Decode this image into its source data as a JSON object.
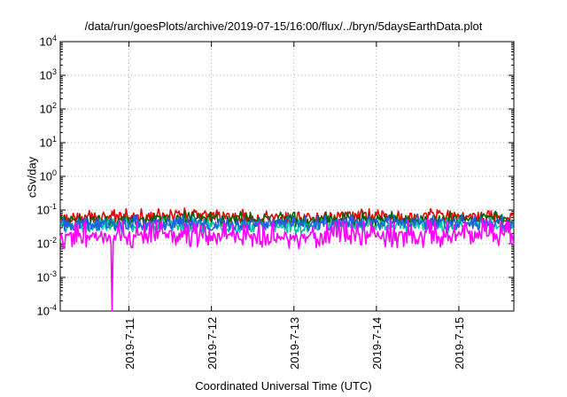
{
  "chart_data": {
    "type": "line",
    "title": "/data/run/goesPlots/archive/2019-07-15/16:00/flux/../bryn/5daysEarthData.plot",
    "xlabel": "Coordinated Universal Time (UTC)",
    "ylabel": "cSv/day",
    "yscale": "log",
    "ylim": [
      0.0001,
      10000
    ],
    "xlim": [
      "2019-07-10 04:00",
      "2019-07-15 16:00"
    ],
    "grid": true,
    "y_tick_labels": [
      {
        "base": "10",
        "exp": "4"
      },
      {
        "base": "10",
        "exp": "3"
      },
      {
        "base": "10",
        "exp": "2"
      },
      {
        "base": "10",
        "exp": "1"
      },
      {
        "base": "10",
        "exp": "0"
      },
      {
        "base": "10",
        "exp": "-1"
      },
      {
        "base": "10",
        "exp": "-2"
      },
      {
        "base": "10",
        "exp": "-3"
      },
      {
        "base": "10",
        "exp": "-4"
      }
    ],
    "x_tick_labels": [
      "2019-7-11",
      "2019-7-12",
      "2019-7-13",
      "2019-7-14",
      "2019-7-15"
    ],
    "series": [
      {
        "color": "#ee0000",
        "values": [
          0.055,
          0.06,
          0.058,
          0.062,
          0.057,
          0.06,
          0.055,
          0.064,
          0.059,
          0.061,
          0.06,
          0.058
        ]
      },
      {
        "color": "#006400",
        "values": [
          0.045,
          0.048,
          0.046,
          0.05,
          0.047,
          0.049,
          0.045,
          0.05,
          0.048,
          0.049,
          0.05,
          0.047
        ]
      },
      {
        "color": "#00c8a0",
        "values": [
          0.03,
          0.032,
          0.031,
          0.033,
          0.03,
          0.032,
          0.029,
          0.033,
          0.031,
          0.032,
          0.033,
          0.031
        ]
      },
      {
        "color": "#2060e0",
        "values": [
          0.035,
          0.038,
          0.036,
          0.04,
          0.037,
          0.039,
          0.035,
          0.04,
          0.038,
          0.039,
          0.04,
          0.037
        ]
      },
      {
        "color": "#ff00ff",
        "values": [
          0.009,
          0.01,
          0.0095,
          0.011,
          0.0098,
          0.0102,
          0.0092,
          0.011,
          0.01,
          0.0105,
          0.011,
          0.0098
        ]
      }
    ],
    "dip": {
      "date": "2019-07-10 19:00",
      "value": 0.0001
    }
  }
}
